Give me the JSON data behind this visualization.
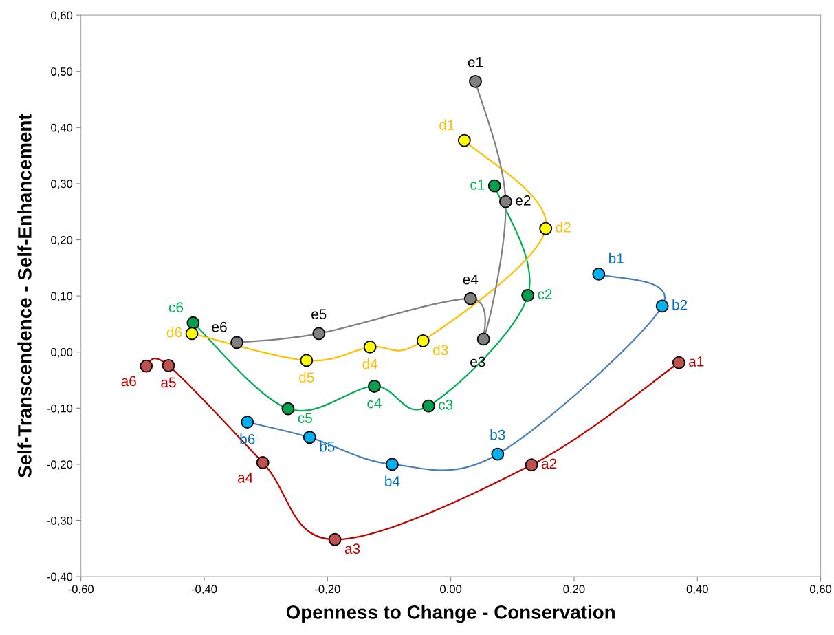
{
  "chart_data": {
    "type": "line",
    "xlabel": "Openness to Change - Conservation",
    "ylabel": "Self-Transcendence - Self-Enhancement",
    "xlim": [
      -0.6,
      0.6
    ],
    "ylim": [
      -0.4,
      0.6
    ],
    "xticks": [
      {
        "value": -0.6,
        "label": "-0,60"
      },
      {
        "value": -0.4,
        "label": "-0,40"
      },
      {
        "value": -0.2,
        "label": "-0,20"
      },
      {
        "value": 0,
        "label": "0,00"
      },
      {
        "value": 0.2,
        "label": "0,20"
      },
      {
        "value": 0.4,
        "label": "0,40"
      },
      {
        "value": 0.6,
        "label": "0,60"
      }
    ],
    "yticks": [
      {
        "value": -0.4,
        "label": "-0,40"
      },
      {
        "value": -0.3,
        "label": "-0,30"
      },
      {
        "value": -0.2,
        "label": "-0,20"
      },
      {
        "value": -0.1,
        "label": "-0,10"
      },
      {
        "value": 0,
        "label": "0,00"
      },
      {
        "value": 0.1,
        "label": "0,10"
      },
      {
        "value": 0.2,
        "label": "0,20"
      },
      {
        "value": 0.3,
        "label": "0,30"
      },
      {
        "value": 0.4,
        "label": "0,40"
      },
      {
        "value": 0.5,
        "label": "0,50"
      },
      {
        "value": 0.6,
        "label": "0,60"
      }
    ],
    "marker": "circle",
    "line_style": "solid",
    "series": [
      {
        "color": "#c00000",
        "colors": [
          "#c0504d",
          "#c0504d",
          "#c0504d",
          "#c0504d",
          "#c0504d",
          "#c0504d"
        ],
        "x": [
          0.37,
          0.131,
          -0.188,
          -0.305,
          -0.458,
          -0.494
        ],
        "values": [
          -0.019,
          -0.201,
          -0.334,
          -0.197,
          -0.024,
          -0.025
        ],
        "value_labels": [
          "a1",
          "a2",
          "a3",
          "a4",
          "a5",
          "a6"
        ]
      },
      {
        "color": "#4a7ebb",
        "colors": [
          "#00b0f0",
          "#00b0f0",
          "#00b0f0",
          "#00b0f0",
          "#00b0f0",
          "#00b0f0"
        ],
        "x": [
          0.24,
          0.343,
          0.076,
          -0.095,
          -0.229,
          -0.33
        ],
        "values": [
          0.139,
          0.082,
          -0.182,
          -0.2,
          -0.152,
          -0.125
        ],
        "value_labels": [
          "b1",
          "b2",
          "b3",
          "b4",
          "b5",
          "b6"
        ]
      },
      {
        "color": "#00b050",
        "colors": [
          "#00a050",
          "#00a050",
          "#00a050",
          "#00a050",
          "#00a050",
          "#00a050"
        ],
        "x": [
          0.071,
          0.125,
          -0.036,
          -0.124,
          -0.264,
          -0.418
        ],
        "values": [
          0.296,
          0.101,
          -0.096,
          -0.061,
          -0.101,
          0.052
        ],
        "value_labels": [
          "c1",
          "c2",
          "c3",
          "c4",
          "c5",
          "c6"
        ]
      },
      {
        "color": "#ffc000",
        "colors": [
          "#ffff00",
          "#ffff00",
          "#ffff00",
          "#ffff00",
          "#ffff00",
          "#ffff00"
        ],
        "x": [
          0.022,
          0.154,
          -0.045,
          -0.131,
          -0.234,
          -0.42
        ],
        "values": [
          0.377,
          0.22,
          0.02,
          0.009,
          -0.015,
          0.033
        ],
        "value_labels": [
          "d1",
          "d2",
          "d3",
          "d4",
          "d5",
          "d6"
        ]
      },
      {
        "color": "#808080",
        "colors": [
          "#808080",
          "#808080",
          "#808080",
          "#808080",
          "#808080",
          "#808080"
        ],
        "x": [
          0.04,
          0.089,
          0.053,
          0.032,
          -0.214,
          -0.347
        ],
        "values": [
          0.482,
          0.268,
          0.023,
          0.095,
          0.033,
          0.017
        ],
        "value_labels": [
          "e1",
          "e2",
          "e3",
          "e4",
          "e5",
          "e6"
        ]
      }
    ]
  }
}
